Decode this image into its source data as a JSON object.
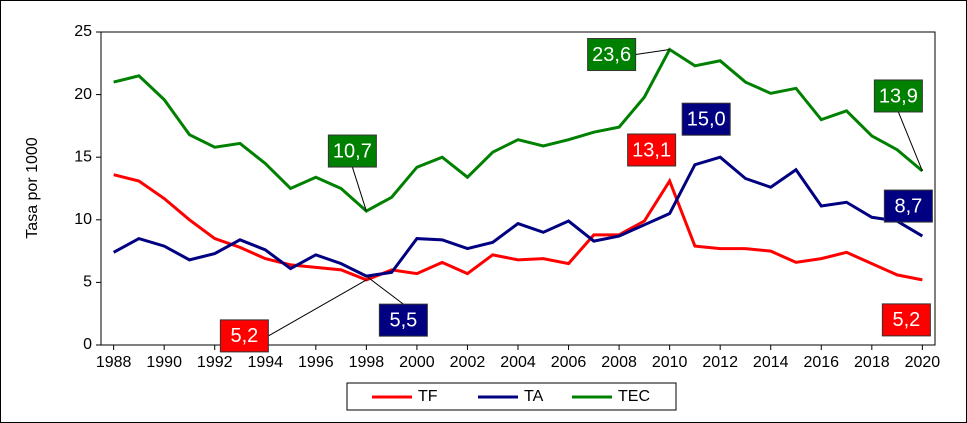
{
  "chart_data": {
    "type": "line",
    "y_label": "Tasa por 1000",
    "x": [
      1988,
      1989,
      1990,
      1991,
      1992,
      1993,
      1994,
      1995,
      1996,
      1997,
      1998,
      1999,
      2000,
      2001,
      2002,
      2003,
      2004,
      2005,
      2006,
      2007,
      2008,
      2009,
      2010,
      2011,
      2012,
      2013,
      2014,
      2015,
      2016,
      2017,
      2018,
      2019,
      2020
    ],
    "xlim": [
      1987.5,
      2020.5
    ],
    "xticks": [
      1988,
      1990,
      1992,
      1994,
      1996,
      1998,
      2000,
      2002,
      2004,
      2006,
      2008,
      2010,
      2012,
      2014,
      2016,
      2018,
      2020
    ],
    "ylim": [
      0,
      25
    ],
    "yticks": [
      0,
      5,
      10,
      15,
      20,
      25
    ],
    "legend": "bottom",
    "series": [
      {
        "name": "TF",
        "color": "#ff0000",
        "values": [
          13.6,
          13.1,
          11.7,
          10.0,
          8.5,
          7.8,
          6.9,
          6.4,
          6.2,
          6.0,
          5.2,
          6.0,
          5.7,
          6.6,
          5.7,
          7.2,
          6.8,
          6.9,
          6.5,
          8.8,
          8.8,
          9.9,
          13.1,
          7.9,
          7.7,
          7.7,
          7.5,
          6.6,
          6.9,
          7.4,
          6.5,
          5.6,
          5.2
        ],
        "value_labels": [
          null,
          null,
          null,
          null,
          null,
          null,
          null,
          null,
          null,
          null,
          "5,2",
          null,
          null,
          null,
          null,
          null,
          null,
          null,
          null,
          null,
          null,
          null,
          "13,1",
          null,
          null,
          null,
          null,
          null,
          null,
          null,
          null,
          null,
          "5,2"
        ]
      },
      {
        "name": "TA",
        "color": "#000080",
        "values": [
          7.4,
          8.5,
          7.9,
          6.8,
          7.3,
          8.4,
          7.6,
          6.1,
          7.2,
          6.5,
          5.5,
          5.8,
          8.5,
          8.4,
          7.7,
          8.2,
          9.7,
          9.0,
          9.9,
          8.3,
          8.7,
          9.6,
          10.5,
          14.4,
          15.0,
          13.3,
          12.6,
          14.0,
          11.1,
          11.4,
          10.2,
          9.9,
          8.7
        ],
        "value_labels": [
          null,
          null,
          null,
          null,
          null,
          null,
          null,
          null,
          null,
          null,
          "5,5",
          null,
          null,
          null,
          null,
          null,
          null,
          null,
          null,
          null,
          null,
          null,
          null,
          null,
          "15,0",
          null,
          null,
          null,
          null,
          null,
          null,
          null,
          "8,7"
        ]
      },
      {
        "name": "TEC",
        "color": "#008000",
        "values": [
          21.0,
          21.5,
          19.6,
          16.8,
          15.8,
          16.1,
          14.5,
          12.5,
          13.4,
          12.5,
          10.7,
          11.8,
          14.2,
          15.0,
          13.4,
          15.4,
          16.4,
          15.9,
          16.4,
          17.0,
          17.4,
          19.8,
          23.6,
          22.3,
          22.7,
          21.0,
          20.1,
          20.5,
          18.0,
          18.7,
          16.7,
          15.6,
          13.9
        ],
        "value_labels": [
          null,
          null,
          null,
          null,
          null,
          null,
          null,
          null,
          null,
          null,
          "10,7",
          null,
          null,
          null,
          null,
          null,
          null,
          null,
          null,
          null,
          null,
          null,
          "23,6",
          null,
          null,
          null,
          null,
          null,
          null,
          null,
          null,
          null,
          "13,9"
        ]
      }
    ]
  }
}
